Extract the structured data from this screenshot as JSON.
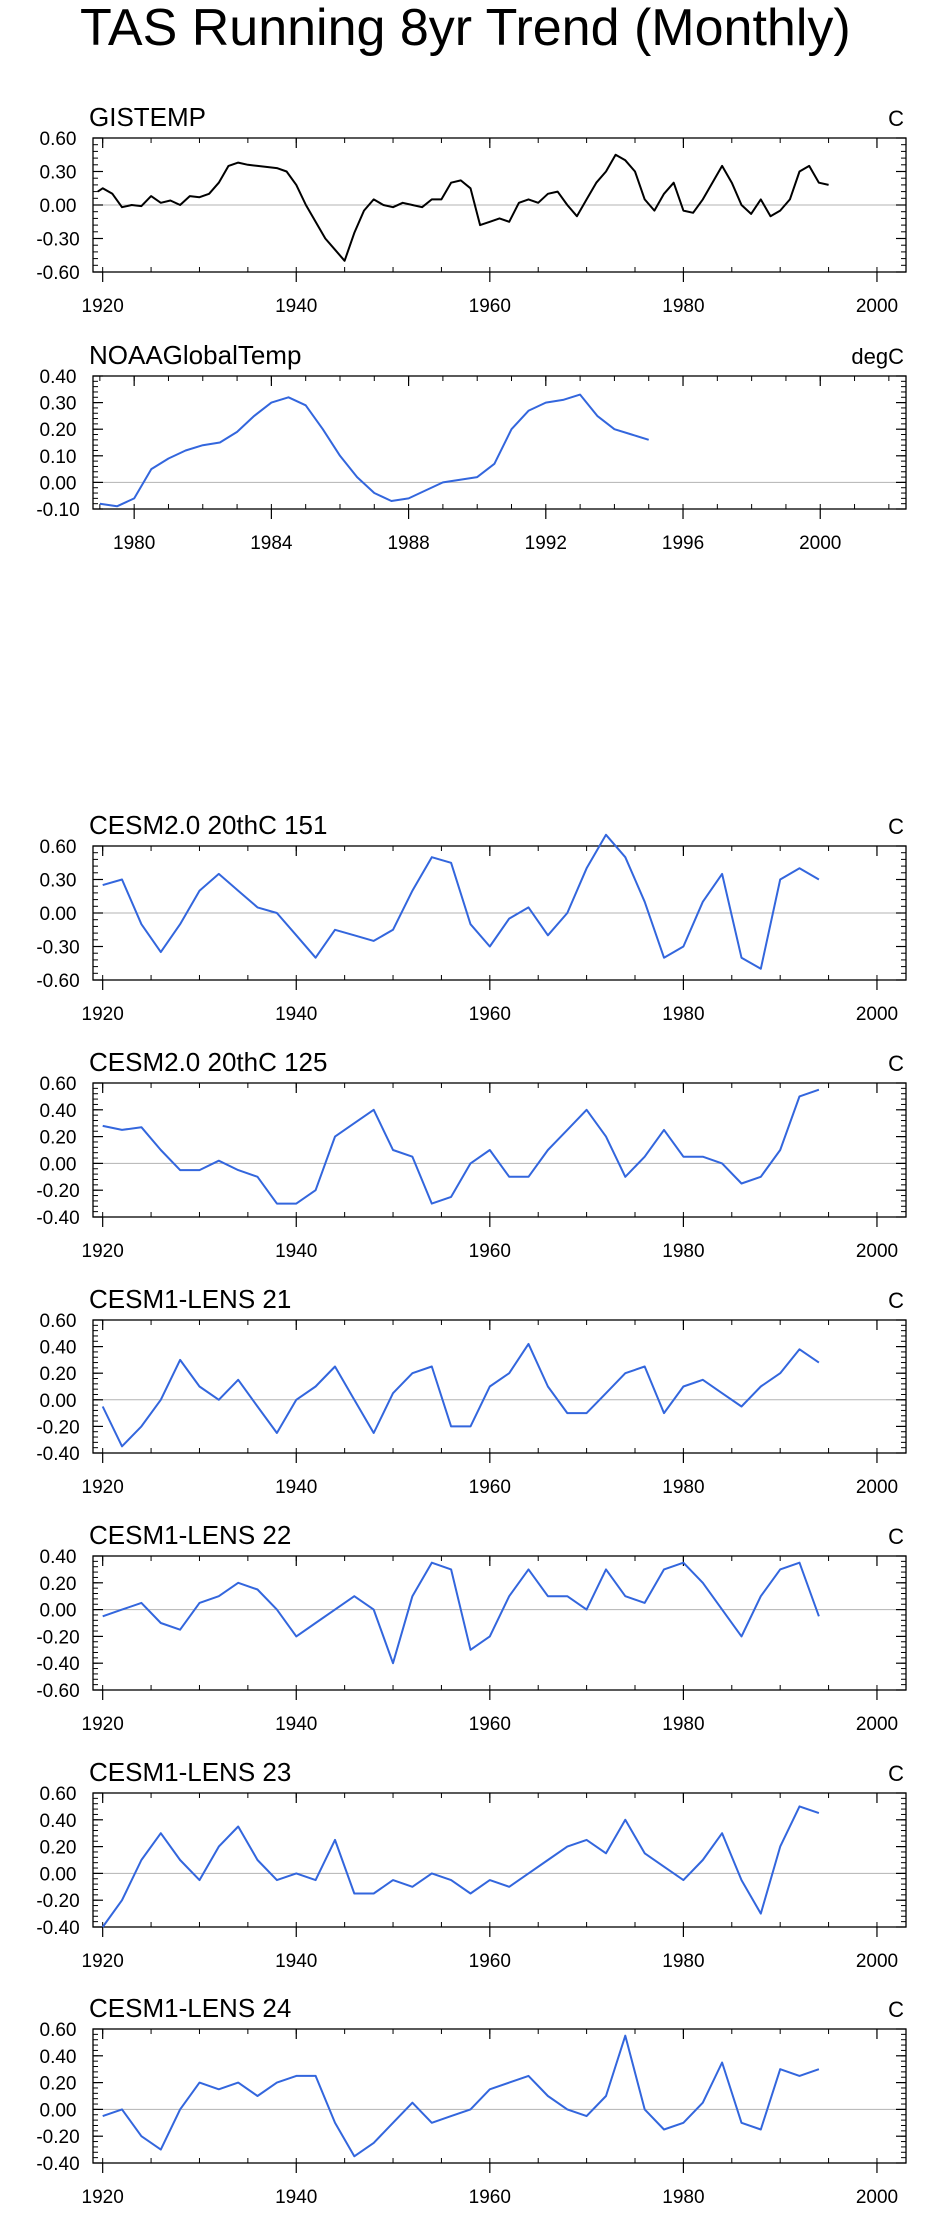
{
  "title": "TAS Running 8yr Trend (Monthly)",
  "colors": {
    "obs": "#000000",
    "model": "#3366dd",
    "zero": "#b3b3b3",
    "axis": "#000000"
  },
  "chart_data": [
    {
      "type": "line",
      "title": "GISTEMP",
      "units": "C",
      "xlim": [
        1919,
        2003
      ],
      "xticks": [
        1920,
        1940,
        1960,
        1980,
        2000
      ],
      "ylim": [
        -0.6,
        0.6
      ],
      "yticks": [
        -0.6,
        -0.3,
        0.0,
        0.3,
        0.6
      ],
      "ytick_labels": [
        "-0.60",
        "-0.30",
        "0.00",
        "0.30",
        "0.60"
      ],
      "series": [
        {
          "name": "GISTEMP",
          "color": "#000000",
          "x": [
            1919.5,
            1920,
            1921,
            1922,
            1923,
            1924,
            1925,
            1926,
            1927,
            1928,
            1929,
            1930,
            1931,
            1932,
            1933,
            1934,
            1935,
            1936,
            1937,
            1938,
            1939,
            1940,
            1941,
            1942,
            1943,
            1944,
            1945,
            1946,
            1947,
            1948,
            1949,
            1950,
            1951,
            1952,
            1953,
            1954,
            1955,
            1956,
            1957,
            1958,
            1959,
            1960,
            1961,
            1962,
            1963,
            1964,
            1965,
            1966,
            1967,
            1968,
            1969,
            1970,
            1971,
            1972,
            1973,
            1974,
            1975,
            1976,
            1977,
            1978,
            1979,
            1980,
            1981,
            1982,
            1983,
            1984,
            1985,
            1986,
            1987,
            1988,
            1989,
            1990,
            1991,
            1992,
            1993,
            1994,
            1995
          ],
          "y": [
            0.12,
            0.15,
            0.1,
            -0.02,
            0.0,
            -0.01,
            0.08,
            0.02,
            0.04,
            0.0,
            0.08,
            0.07,
            0.1,
            0.2,
            0.35,
            0.38,
            0.36,
            0.35,
            0.34,
            0.33,
            0.3,
            0.18,
            0.0,
            -0.15,
            -0.3,
            -0.4,
            -0.5,
            -0.25,
            -0.05,
            0.05,
            0.0,
            -0.02,
            0.02,
            0.0,
            -0.02,
            0.05,
            0.05,
            0.2,
            0.22,
            0.15,
            -0.18,
            -0.15,
            -0.12,
            -0.15,
            0.02,
            0.05,
            0.02,
            0.1,
            0.12,
            0.0,
            -0.1,
            0.05,
            0.2,
            0.3,
            0.45,
            0.4,
            0.3,
            0.05,
            -0.05,
            0.1,
            0.2,
            -0.05,
            -0.07,
            0.05,
            0.2,
            0.35,
            0.2,
            0.0,
            -0.08,
            0.05,
            -0.1,
            -0.05,
            0.05,
            0.3,
            0.35,
            0.2,
            0.18
          ]
        }
      ]
    },
    {
      "type": "line",
      "title": "NOAAGlobalTemp",
      "units": "degC",
      "xlim": [
        1978.8,
        2002.5
      ],
      "xticks": [
        1980,
        1984,
        1988,
        1992,
        1996,
        2000
      ],
      "ylim": [
        -0.1,
        0.4
      ],
      "yticks": [
        -0.1,
        0.0,
        0.1,
        0.2,
        0.3,
        0.4
      ],
      "ytick_labels": [
        "-0.10",
        "0.00",
        "0.10",
        "0.20",
        "0.30",
        "0.40"
      ],
      "series": [
        {
          "name": "NOAAGlobalTemp",
          "color": "#3366dd",
          "x": [
            1979,
            1979.5,
            1980,
            1980.5,
            1981,
            1981.5,
            1982,
            1982.5,
            1983,
            1983.5,
            1984,
            1984.5,
            1985,
            1985.5,
            1986,
            1986.5,
            1987,
            1987.5,
            1988,
            1988.5,
            1989,
            1989.5,
            1990,
            1990.5,
            1991,
            1991.5,
            1992,
            1992.5,
            1993,
            1993.5,
            1994,
            1994.5,
            1995
          ],
          "y": [
            -0.08,
            -0.09,
            -0.06,
            0.05,
            0.09,
            0.12,
            0.14,
            0.15,
            0.19,
            0.25,
            0.3,
            0.32,
            0.29,
            0.2,
            0.1,
            0.02,
            -0.04,
            -0.07,
            -0.06,
            -0.03,
            0.0,
            0.01,
            0.02,
            0.07,
            0.2,
            0.27,
            0.3,
            0.31,
            0.33,
            0.25,
            0.2,
            0.18,
            0.16
          ]
        }
      ]
    },
    {
      "type": "line",
      "title": "CESM2.0 20thC 151",
      "units": "C",
      "xlim": [
        1919,
        2003
      ],
      "xticks": [
        1920,
        1940,
        1960,
        1980,
        2000
      ],
      "ylim": [
        -0.6,
        0.6
      ],
      "yticks": [
        -0.6,
        -0.3,
        0.0,
        0.3,
        0.6
      ],
      "ytick_labels": [
        "-0.60",
        "-0.30",
        "0.00",
        "0.30",
        "0.60"
      ],
      "series": [
        {
          "name": "CESM2.0 20thC 151",
          "color": "#3366dd",
          "x": [
            1920,
            1922,
            1924,
            1926,
            1928,
            1930,
            1932,
            1934,
            1936,
            1938,
            1940,
            1942,
            1944,
            1946,
            1948,
            1950,
            1952,
            1954,
            1956,
            1958,
            1960,
            1962,
            1964,
            1966,
            1968,
            1970,
            1972,
            1974,
            1976,
            1978,
            1980,
            1982,
            1984,
            1986,
            1988,
            1990,
            1992,
            1994
          ],
          "y": [
            0.25,
            0.3,
            -0.1,
            -0.35,
            -0.1,
            0.2,
            0.35,
            0.2,
            0.05,
            0.0,
            -0.2,
            -0.4,
            -0.15,
            -0.2,
            -0.25,
            -0.15,
            0.2,
            0.5,
            0.45,
            -0.1,
            -0.3,
            -0.05,
            0.05,
            -0.2,
            0.0,
            0.4,
            0.7,
            0.5,
            0.1,
            -0.4,
            -0.3,
            0.1,
            0.35,
            -0.4,
            -0.5,
            0.3,
            0.4,
            0.3
          ]
        }
      ]
    },
    {
      "type": "line",
      "title": "CESM2.0 20thC 125",
      "units": "C",
      "xlim": [
        1919,
        2003
      ],
      "xticks": [
        1920,
        1940,
        1960,
        1980,
        2000
      ],
      "ylim": [
        -0.4,
        0.6
      ],
      "yticks": [
        -0.4,
        -0.2,
        0.0,
        0.2,
        0.4,
        0.6
      ],
      "ytick_labels": [
        "-0.40",
        "-0.20",
        "0.00",
        "0.20",
        "0.40",
        "0.60"
      ],
      "series": [
        {
          "name": "CESM2.0 20thC 125",
          "color": "#3366dd",
          "x": [
            1920,
            1922,
            1924,
            1926,
            1928,
            1930,
            1932,
            1934,
            1936,
            1938,
            1940,
            1942,
            1944,
            1946,
            1948,
            1950,
            1952,
            1954,
            1956,
            1958,
            1960,
            1962,
            1964,
            1966,
            1968,
            1970,
            1972,
            1974,
            1976,
            1978,
            1980,
            1982,
            1984,
            1986,
            1988,
            1990,
            1992,
            1994
          ],
          "y": [
            0.28,
            0.25,
            0.27,
            0.1,
            -0.05,
            -0.05,
            0.02,
            -0.05,
            -0.1,
            -0.3,
            -0.3,
            -0.2,
            0.2,
            0.3,
            0.4,
            0.1,
            0.05,
            -0.3,
            -0.25,
            0.0,
            0.1,
            -0.1,
            -0.1,
            0.1,
            0.25,
            0.4,
            0.2,
            -0.1,
            0.05,
            0.25,
            0.05,
            0.05,
            0.0,
            -0.15,
            -0.1,
            0.1,
            0.5,
            0.55
          ]
        }
      ]
    },
    {
      "type": "line",
      "title": "CESM1-LENS 21",
      "units": "C",
      "xlim": [
        1919,
        2003
      ],
      "xticks": [
        1920,
        1940,
        1960,
        1980,
        2000
      ],
      "ylim": [
        -0.4,
        0.6
      ],
      "yticks": [
        -0.4,
        -0.2,
        0.0,
        0.2,
        0.4,
        0.6
      ],
      "ytick_labels": [
        "-0.40",
        "-0.20",
        "0.00",
        "0.20",
        "0.40",
        "0.60"
      ],
      "series": [
        {
          "name": "CESM1-LENS 21",
          "color": "#3366dd",
          "x": [
            1920,
            1922,
            1924,
            1926,
            1928,
            1930,
            1932,
            1934,
            1936,
            1938,
            1940,
            1942,
            1944,
            1946,
            1948,
            1950,
            1952,
            1954,
            1956,
            1958,
            1960,
            1962,
            1964,
            1966,
            1968,
            1970,
            1972,
            1974,
            1976,
            1978,
            1980,
            1982,
            1984,
            1986,
            1988,
            1990,
            1992,
            1994
          ],
          "y": [
            -0.05,
            -0.35,
            -0.2,
            0.0,
            0.3,
            0.1,
            0.0,
            0.15,
            -0.05,
            -0.25,
            0.0,
            0.1,
            0.25,
            0.0,
            -0.25,
            0.05,
            0.2,
            0.25,
            -0.2,
            -0.2,
            0.1,
            0.2,
            0.42,
            0.1,
            -0.1,
            -0.1,
            0.05,
            0.2,
            0.25,
            -0.1,
            0.1,
            0.15,
            0.05,
            -0.05,
            0.1,
            0.2,
            0.38,
            0.28
          ]
        }
      ]
    },
    {
      "type": "line",
      "title": "CESM1-LENS 22",
      "units": "C",
      "xlim": [
        1919,
        2003
      ],
      "xticks": [
        1920,
        1940,
        1960,
        1980,
        2000
      ],
      "ylim": [
        -0.6,
        0.4
      ],
      "yticks": [
        -0.6,
        -0.4,
        -0.2,
        0.0,
        0.2,
        0.4
      ],
      "ytick_labels": [
        "-0.60",
        "-0.40",
        "-0.20",
        "0.00",
        "0.20",
        "0.40"
      ],
      "series": [
        {
          "name": "CESM1-LENS 22",
          "color": "#3366dd",
          "x": [
            1920,
            1922,
            1924,
            1926,
            1928,
            1930,
            1932,
            1934,
            1936,
            1938,
            1940,
            1942,
            1944,
            1946,
            1948,
            1950,
            1952,
            1954,
            1956,
            1958,
            1960,
            1962,
            1964,
            1966,
            1968,
            1970,
            1972,
            1974,
            1976,
            1978,
            1980,
            1982,
            1984,
            1986,
            1988,
            1990,
            1992,
            1994
          ],
          "y": [
            -0.05,
            0.0,
            0.05,
            -0.1,
            -0.15,
            0.05,
            0.1,
            0.2,
            0.15,
            0.0,
            -0.2,
            -0.1,
            0.0,
            0.1,
            0.0,
            -0.4,
            0.1,
            0.35,
            0.3,
            -0.3,
            -0.2,
            0.1,
            0.3,
            0.1,
            0.1,
            0.0,
            0.3,
            0.1,
            0.05,
            0.3,
            0.35,
            0.2,
            0.0,
            -0.2,
            0.1,
            0.3,
            0.35,
            -0.05
          ]
        }
      ]
    },
    {
      "type": "line",
      "title": "CESM1-LENS 23",
      "units": "C",
      "xlim": [
        1919,
        2003
      ],
      "xticks": [
        1920,
        1940,
        1960,
        1980,
        2000
      ],
      "ylim": [
        -0.4,
        0.6
      ],
      "yticks": [
        -0.4,
        -0.2,
        0.0,
        0.2,
        0.4,
        0.6
      ],
      "ytick_labels": [
        "-0.40",
        "-0.20",
        "0.00",
        "0.20",
        "0.40",
        "0.60"
      ],
      "series": [
        {
          "name": "CESM1-LENS 23",
          "color": "#3366dd",
          "x": [
            1920,
            1922,
            1924,
            1926,
            1928,
            1930,
            1932,
            1934,
            1936,
            1938,
            1940,
            1942,
            1944,
            1946,
            1948,
            1950,
            1952,
            1954,
            1956,
            1958,
            1960,
            1962,
            1964,
            1966,
            1968,
            1970,
            1972,
            1974,
            1976,
            1978,
            1980,
            1982,
            1984,
            1986,
            1988,
            1990,
            1992,
            1994
          ],
          "y": [
            -0.4,
            -0.2,
            0.1,
            0.3,
            0.1,
            -0.05,
            0.2,
            0.35,
            0.1,
            -0.05,
            0.0,
            -0.05,
            0.25,
            -0.15,
            -0.15,
            -0.05,
            -0.1,
            0.0,
            -0.05,
            -0.15,
            -0.05,
            -0.1,
            0.0,
            0.1,
            0.2,
            0.25,
            0.15,
            0.4,
            0.15,
            0.05,
            -0.05,
            0.1,
            0.3,
            -0.05,
            -0.3,
            0.2,
            0.5,
            0.45
          ]
        }
      ]
    },
    {
      "type": "line",
      "title": "CESM1-LENS 24",
      "units": "C",
      "xlim": [
        1919,
        2003
      ],
      "xticks": [
        1920,
        1940,
        1960,
        1980,
        2000
      ],
      "ylim": [
        -0.4,
        0.6
      ],
      "yticks": [
        -0.4,
        -0.2,
        0.0,
        0.2,
        0.4,
        0.6
      ],
      "ytick_labels": [
        "-0.40",
        "-0.20",
        "0.00",
        "0.20",
        "0.40",
        "0.60"
      ],
      "series": [
        {
          "name": "CESM1-LENS 24",
          "color": "#3366dd",
          "x": [
            1920,
            1922,
            1924,
            1926,
            1928,
            1930,
            1932,
            1934,
            1936,
            1938,
            1940,
            1942,
            1944,
            1946,
            1948,
            1950,
            1952,
            1954,
            1956,
            1958,
            1960,
            1962,
            1964,
            1966,
            1968,
            1970,
            1972,
            1974,
            1976,
            1978,
            1980,
            1982,
            1984,
            1986,
            1988,
            1990,
            1992,
            1994
          ],
          "y": [
            -0.05,
            0.0,
            -0.2,
            -0.3,
            0.0,
            0.2,
            0.15,
            0.2,
            0.1,
            0.2,
            0.25,
            0.25,
            -0.1,
            -0.35,
            -0.25,
            -0.1,
            0.05,
            -0.1,
            -0.05,
            0.0,
            0.15,
            0.2,
            0.25,
            0.1,
            0.0,
            -0.05,
            0.1,
            0.55,
            0.0,
            -0.15,
            -0.1,
            0.05,
            0.35,
            -0.1,
            -0.15,
            0.3,
            0.25,
            0.3
          ]
        }
      ]
    }
  ]
}
